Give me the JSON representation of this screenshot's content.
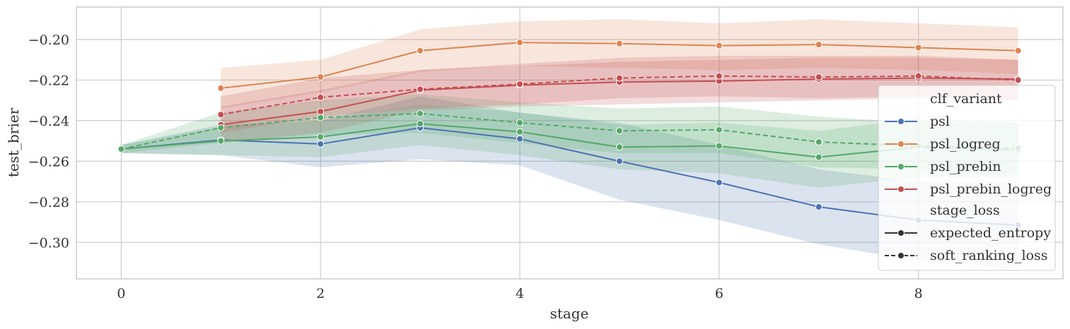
{
  "chart_data": {
    "type": "line",
    "xlabel": "stage",
    "ylabel": "test_brier",
    "xlim": [
      -0.45,
      9.45
    ],
    "ylim": [
      -0.318,
      -0.184
    ],
    "xticks": [
      0,
      2,
      4,
      6,
      8
    ],
    "yticks": [
      -0.3,
      -0.28,
      -0.26,
      -0.24,
      -0.22,
      -0.2
    ],
    "xtick_labels": [
      "0",
      "2",
      "4",
      "6",
      "8"
    ],
    "ytick_labels": [
      "−0.30",
      "−0.28",
      "−0.26",
      "−0.24",
      "−0.22",
      "−0.20"
    ],
    "grid": true,
    "legend_placement": "lower-right",
    "legend": {
      "hue_title": "clf_variant",
      "style_title": "stage_loss",
      "hue_entries": [
        "psl",
        "psl_logreg",
        "psl_prebin",
        "psl_prebin_logreg"
      ],
      "style_entries": [
        "expected_entropy",
        "soft_ranking_loss"
      ]
    },
    "colors": {
      "psl": "#4c72b0",
      "psl_logreg": "#dd8452",
      "psl_prebin": "#55a868",
      "psl_prebin_logreg": "#c44e52",
      "neutral": "#333333"
    },
    "series": [
      {
        "name": "psl",
        "hue": "psl",
        "style": "expected_entropy",
        "x": [
          0,
          1,
          2,
          3,
          4,
          5,
          6,
          7,
          8,
          9
        ],
        "y": [
          -0.254,
          -0.2495,
          -0.2515,
          -0.2435,
          -0.249,
          -0.26,
          -0.2705,
          -0.2825,
          -0.289,
          -0.2915
        ],
        "ci_low": [
          -0.256,
          -0.257,
          -0.263,
          -0.259,
          -0.262,
          -0.279,
          -0.289,
          -0.301,
          -0.309,
          -0.313
        ],
        "ci_high": [
          -0.252,
          -0.242,
          -0.24,
          -0.228,
          -0.236,
          -0.241,
          -0.252,
          -0.264,
          -0.27,
          -0.27
        ]
      },
      {
        "name": "psl_logreg",
        "hue": "psl_logreg",
        "style": "expected_entropy",
        "x": [
          1,
          2,
          3,
          4,
          5,
          6,
          7,
          8,
          9
        ],
        "y": [
          -0.224,
          -0.2185,
          -0.2055,
          -0.2015,
          -0.202,
          -0.203,
          -0.2025,
          -0.204,
          -0.2055
        ],
        "ci_low": [
          -0.234,
          -0.226,
          -0.216,
          -0.213,
          -0.214,
          -0.215,
          -0.214,
          -0.215,
          -0.217
        ],
        "ci_high": [
          -0.214,
          -0.21,
          -0.195,
          -0.191,
          -0.19,
          -0.192,
          -0.19,
          -0.192,
          -0.194
        ]
      },
      {
        "name": "psl_prebin",
        "hue": "psl_prebin",
        "style": "expected_entropy",
        "x": [
          0,
          1,
          2,
          3,
          4,
          5,
          6,
          7,
          8,
          9
        ],
        "y": [
          -0.254,
          -0.25,
          -0.248,
          -0.2415,
          -0.2455,
          -0.253,
          -0.2525,
          -0.258,
          -0.253,
          -0.2545
        ],
        "ci_low": [
          -0.256,
          -0.257,
          -0.258,
          -0.252,
          -0.257,
          -0.264,
          -0.266,
          -0.273,
          -0.268,
          -0.268
        ],
        "ci_high": [
          -0.252,
          -0.243,
          -0.24,
          -0.232,
          -0.236,
          -0.242,
          -0.241,
          -0.245,
          -0.239,
          -0.241
        ]
      },
      {
        "name": "psl_prebin_logreg",
        "hue": "psl_prebin_logreg",
        "style": "expected_entropy",
        "x": [
          1,
          2,
          3,
          4,
          5,
          6,
          7,
          8,
          9
        ],
        "y": [
          -0.242,
          -0.2355,
          -0.225,
          -0.2225,
          -0.221,
          -0.2205,
          -0.2195,
          -0.219,
          -0.2195
        ],
        "ci_low": [
          -0.251,
          -0.246,
          -0.235,
          -0.233,
          -0.232,
          -0.231,
          -0.23,
          -0.229,
          -0.23
        ],
        "ci_high": [
          -0.233,
          -0.225,
          -0.215,
          -0.213,
          -0.211,
          -0.21,
          -0.209,
          -0.209,
          -0.21
        ]
      },
      {
        "name": "psl_prebin",
        "hue": "psl_prebin",
        "style": "soft_ranking_loss",
        "x": [
          0,
          1,
          2,
          3,
          4,
          5,
          6,
          7,
          8,
          9
        ],
        "y": [
          -0.254,
          -0.2435,
          -0.2385,
          -0.2365,
          -0.241,
          -0.245,
          -0.2445,
          -0.2505,
          -0.2525,
          -0.2535
        ],
        "ci_low": [
          -0.256,
          -0.251,
          -0.247,
          -0.246,
          -0.251,
          -0.256,
          -0.256,
          -0.263,
          -0.264,
          -0.266
        ],
        "ci_high": [
          -0.252,
          -0.236,
          -0.23,
          -0.227,
          -0.231,
          -0.234,
          -0.233,
          -0.238,
          -0.241,
          -0.241
        ]
      },
      {
        "name": "psl_prebin_logreg",
        "hue": "psl_prebin_logreg",
        "style": "soft_ranking_loss",
        "x": [
          1,
          2,
          3,
          4,
          5,
          6,
          7,
          8,
          9
        ],
        "y": [
          -0.237,
          -0.2285,
          -0.2245,
          -0.222,
          -0.219,
          -0.218,
          -0.2185,
          -0.218,
          -0.22
        ],
        "ci_low": [
          -0.246,
          -0.238,
          -0.234,
          -0.232,
          -0.229,
          -0.228,
          -0.229,
          -0.228,
          -0.23
        ],
        "ci_high": [
          -0.228,
          -0.219,
          -0.215,
          -0.212,
          -0.209,
          -0.208,
          -0.208,
          -0.208,
          -0.21
        ]
      }
    ]
  }
}
